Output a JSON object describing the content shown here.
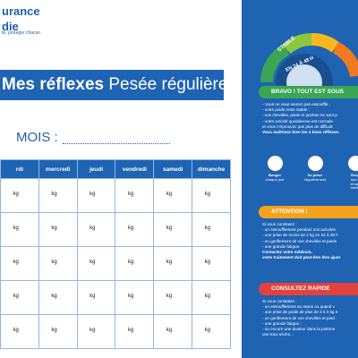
{
  "header": {
    "line1": "urance",
    "line2": "die",
    "tagline": "té, protéger chacun"
  },
  "banner": {
    "bold": "Mes réflexes",
    "rest": "Pesée régulière"
  },
  "month_label": "MOIS :",
  "table": {
    "columns": [
      "rdi",
      "mercredi",
      "jeudi",
      "vendredi",
      "samedi",
      "dimanche"
    ],
    "rows": [
      [
        "kg",
        "kg",
        "kg",
        "kg",
        "kg",
        "kg"
      ],
      [
        "kg",
        "kg",
        "kg",
        "kg",
        "kg",
        "kg"
      ],
      [
        "kg",
        "kg",
        "kg",
        "kg",
        "kg",
        "kg"
      ],
      [
        "kg",
        "kg",
        "kg",
        "kg",
        "kg",
        "kg"
      ],
      [
        "kg",
        "kg",
        "kg",
        "kg",
        "kg",
        "kg"
      ]
    ]
  },
  "side": {
    "gauge": {
      "stable": "STABLE",
      "delay": "EN 24 À 48 H"
    },
    "bravo": {
      "title": "BRAVO ! TOUT EST SOUS",
      "lines": [
        "- Vous ne vous sentez pas essoufflé ;",
        "- votre poids reste stable ;",
        "- vos chevilles, pieds et jambes ne sont p",
        "- votre activité quotidienne est normale",
        "  et vous n'éprouvez pas plus de difficult"
      ],
      "bold": "Vous maîtrisez bien les 4 bons réflexes."
    },
    "icons": [
      [
        "Bouger",
        "chaque jour"
      ],
      [
        "Se peser",
        "régulièrement"
      ],
      [
        "Resp",
        "son tr",
        "et ses",
        "médic"
      ]
    ],
    "attention": {
      "title": "ATTENTION !",
      "lines": [
        "Si vous constatez :",
        "- un essoufflement pendant vos activités",
        "- une prise de moins de 2 kg en 24 à 48 h",
        "- un gonflement de vos chevilles et pieds",
        "- une grande fatigue."
      ],
      "bold": [
        "Contactez votre médecin,",
        "votre traitement doit peut-être être ajust"
      ]
    },
    "consult": {
      "title": "CONSULTEZ RAPIDE",
      "lines": [
        "Si vous constatez :",
        "- un essoufflement au repos ou quand v",
        "- une prise de poids de plus de 2 à 3 kg e",
        "- un gonflement de vos chevilles et pied",
        "- une grande fatigue ;",
        "- ou encore une douleur dans la poitrine",
        "  une toux sèche..."
      ]
    }
  }
}
